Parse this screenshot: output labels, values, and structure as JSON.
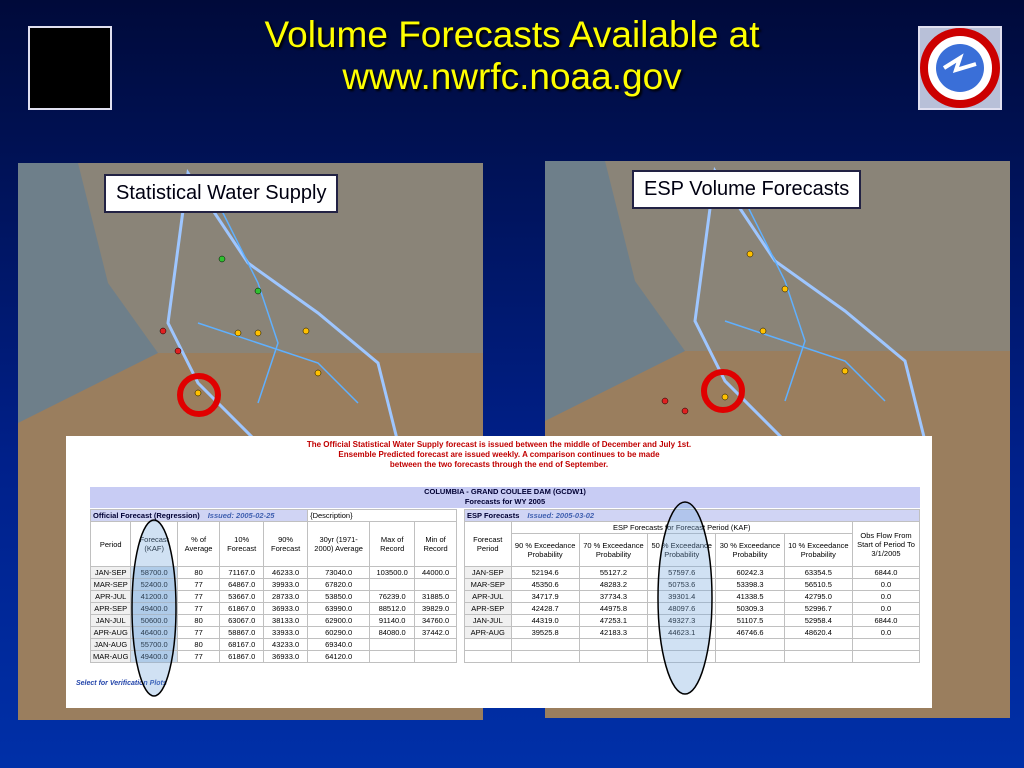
{
  "header": {
    "title_lines": [
      "Volume Forecasts Available at",
      "www.nwrfc.noaa.gov"
    ]
  },
  "left_map": {
    "label": "Statistical Water Supply"
  },
  "right_map": {
    "label": "ESP Volume Forecasts"
  },
  "panel": {
    "notice_lines": [
      "The Official Statistical Water Supply forecast is issued between the middle of December and July 1st.",
      "Ensemble Predicted forecast are issued weekly.   A comparison continues to be made",
      "between the two forecasts through the end of September."
    ],
    "table_title": [
      "COLUMBIA - GRAND COULEE DAM (GCDW1)",
      "Forecasts for WY 2005"
    ],
    "official": {
      "section": "Official Forecast (Regression)",
      "issued": "Issued: 2005-02-25",
      "description": "{Description}",
      "columns": [
        "Period",
        "Forecast (KAF)",
        "% of Average",
        "10% Forecast",
        "90% Forecast",
        "30yr (1971-2000) Average",
        "Max of Record",
        "Min of Record"
      ],
      "rows": [
        [
          "JAN-SEP",
          "58700.0",
          "80",
          "71167.0",
          "46233.0",
          "73040.0",
          "103500.0",
          "44000.0"
        ],
        [
          "MAR-SEP",
          "52400.0",
          "77",
          "64867.0",
          "39933.0",
          "67820.0"
        ],
        [
          "APR-JUL",
          "41200.0",
          "77",
          "53667.0",
          "28733.0",
          "53850.0",
          "76239.0",
          "31885.0"
        ],
        [
          "APR-SEP",
          "49400.0",
          "77",
          "61867.0",
          "36933.0",
          "63990.0",
          "88512.0",
          "39829.0"
        ],
        [
          "JAN-JUL",
          "50600.0",
          "80",
          "63067.0",
          "38133.0",
          "62900.0",
          "91140.0",
          "34760.0"
        ],
        [
          "APR-AUG",
          "46400.0",
          "77",
          "58867.0",
          "33933.0",
          "60290.0",
          "84080.0",
          "37442.0"
        ],
        [
          "JAN-AUG",
          "55700.0",
          "80",
          "68167.0",
          "43233.0",
          "69340.0"
        ],
        [
          "MAR-AUG",
          "49400.0",
          "77",
          "61867.0",
          "36933.0",
          "64120.0"
        ]
      ]
    },
    "esp": {
      "section": "ESP Forecasts",
      "issued": "Issued: 2005-03-02",
      "group": "ESP Forecasts for Forecast Period (KAF)",
      "period_column": "Forecast Period",
      "obs_column": "Obs Flow From Start of Period To 3/1/2005",
      "columns": [
        "90 % Exceedance Probability",
        "70 % Exceedance Probability",
        "50 % Exceedance Probability",
        "30 % Exceedance Probability",
        "10 % Exceedance Probability"
      ],
      "rows": [
        [
          "JAN-SEP",
          "52194.6",
          "55127.2",
          "57597.6",
          "60242.3",
          "63354.5",
          "6844.0"
        ],
        [
          "MAR-SEP",
          "45350.6",
          "48283.2",
          "50753.6",
          "53398.3",
          "56510.5",
          "0.0"
        ],
        [
          "APR-JUL",
          "34717.9",
          "37734.3",
          "39301.4",
          "41338.5",
          "42795.0",
          "0.0"
        ],
        [
          "APR-SEP",
          "42428.7",
          "44975.8",
          "48097.6",
          "50309.3",
          "52996.7",
          "0.0"
        ],
        [
          "JAN-JUL",
          "44319.0",
          "47253.1",
          "49327.3",
          "51107.5",
          "52958.4",
          "6844.0"
        ],
        [
          "APR-AUG",
          "39525.8",
          "42183.3",
          "44623.1",
          "46746.6",
          "48620.4",
          "0.0"
        ]
      ]
    },
    "footer_link": "Select for Verification Plots"
  }
}
